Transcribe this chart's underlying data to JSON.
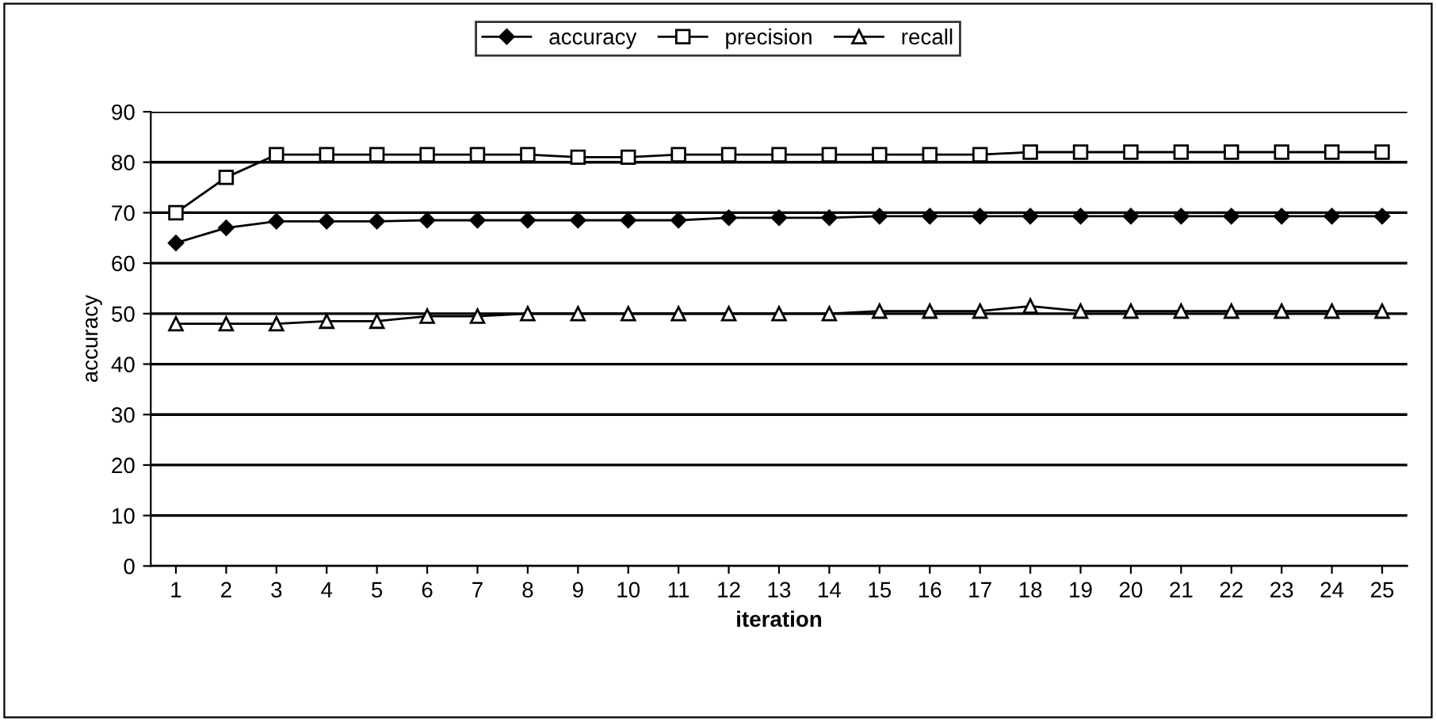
{
  "chart_data": {
    "type": "line",
    "categories": [
      "1",
      "2",
      "3",
      "4",
      "5",
      "6",
      "7",
      "8",
      "9",
      "10",
      "11",
      "12",
      "13",
      "14",
      "15",
      "16",
      "17",
      "18",
      "19",
      "20",
      "21",
      "22",
      "23",
      "24",
      "25"
    ],
    "series": [
      {
        "name": "accuracy",
        "color": "#000000",
        "marker": "diamond",
        "values": [
          64,
          67,
          68.3,
          68.3,
          68.3,
          68.5,
          68.5,
          68.5,
          68.5,
          68.5,
          68.5,
          69,
          69,
          69,
          69.3,
          69.3,
          69.3,
          69.3,
          69.3,
          69.3,
          69.3,
          69.3,
          69.3,
          69.3,
          69.3
        ]
      },
      {
        "name": "precision",
        "color": "#000000",
        "marker": "square",
        "values": [
          70,
          77,
          81.5,
          81.5,
          81.5,
          81.5,
          81.5,
          81.5,
          81,
          81,
          81.5,
          81.5,
          81.5,
          81.5,
          81.5,
          81.5,
          81.5,
          82,
          82,
          82,
          82,
          82,
          82,
          82,
          82
        ]
      },
      {
        "name": "recall",
        "color": "#000000",
        "marker": "triangle",
        "values": [
          48,
          48,
          48,
          48.5,
          48.5,
          49.5,
          49.5,
          50,
          50,
          50,
          50,
          50,
          50,
          50,
          50.5,
          50.5,
          50.5,
          51.5,
          50.5,
          50.5,
          50.5,
          50.5,
          50.5,
          50.5,
          50.5
        ]
      }
    ],
    "xlabel": "iteration",
    "ylabel": "accuracy",
    "ylim": [
      0,
      90
    ],
    "yticks": [
      0,
      10,
      20,
      30,
      40,
      50,
      60,
      70,
      80,
      90
    ],
    "grid": "y",
    "legend": "top",
    "line_style": "solid"
  }
}
